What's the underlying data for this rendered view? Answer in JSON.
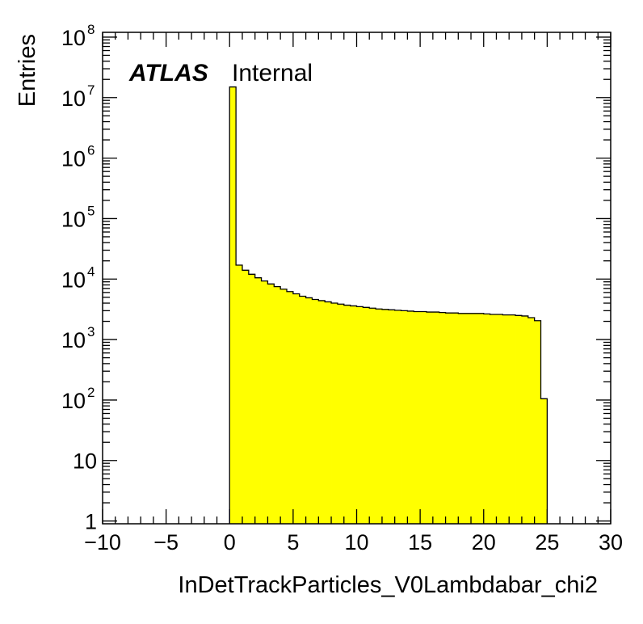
{
  "chart_data": {
    "type": "bar",
    "histogram": true,
    "fill_color": "#ffff00",
    "line_color": "#000000",
    "xlabel": "InDetTrackParticles_V0Lambdabar_chi2",
    "ylabel": "Entries",
    "xlim": [
      -10,
      30
    ],
    "ylim": [
      0.9,
      120000000
    ],
    "log_y": true,
    "grid": false,
    "legend": "none",
    "annotation": {
      "bold": "ATLAS",
      "normal": "Internal"
    },
    "x_ticks": [
      {
        "v": -10,
        "label": "−10"
      },
      {
        "v": -5,
        "label": "−5"
      },
      {
        "v": 0,
        "label": "0"
      },
      {
        "v": 5,
        "label": "5"
      },
      {
        "v": 10,
        "label": "10"
      },
      {
        "v": 15,
        "label": "15"
      },
      {
        "v": 20,
        "label": "20"
      },
      {
        "v": 25,
        "label": "25"
      },
      {
        "v": 30,
        "label": "30"
      }
    ],
    "y_ticks": [
      {
        "v": 1,
        "base": "1",
        "exp": ""
      },
      {
        "v": 10,
        "base": "10",
        "exp": ""
      },
      {
        "v": 100,
        "base": "10",
        "exp": "2"
      },
      {
        "v": 1000,
        "base": "10",
        "exp": "3"
      },
      {
        "v": 10000,
        "base": "10",
        "exp": "4"
      },
      {
        "v": 100000,
        "base": "10",
        "exp": "5"
      },
      {
        "v": 1000000,
        "base": "10",
        "exp": "6"
      },
      {
        "v": 10000000,
        "base": "10",
        "exp": "7"
      },
      {
        "v": 100000000,
        "base": "10",
        "exp": "8"
      }
    ],
    "bin_width": 0.5,
    "bin_edges_start": 0,
    "values": [
      15000000,
      17000,
      14000,
      12000,
      10500,
      9300,
      8300,
      7500,
      6800,
      6200,
      5700,
      5200,
      4900,
      4600,
      4400,
      4200,
      4000,
      3850,
      3700,
      3600,
      3500,
      3400,
      3300,
      3200,
      3150,
      3100,
      3050,
      3000,
      2950,
      2900,
      2900,
      2850,
      2850,
      2800,
      2750,
      2750,
      2700,
      2700,
      2700,
      2700,
      2650,
      2600,
      2600,
      2550,
      2550,
      2500,
      2450,
      2300,
      2050,
      105
    ]
  }
}
